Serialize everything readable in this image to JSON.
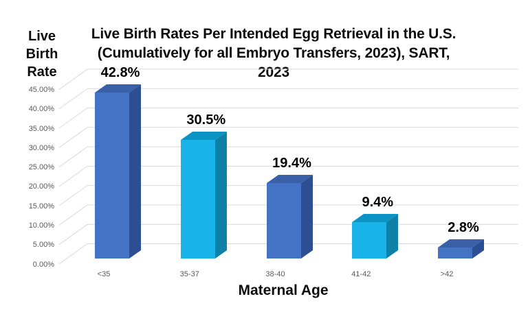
{
  "header": {
    "title_line1": "Live Birth Rates Per Intended Egg Retrieval in the U.S.",
    "title_line2": "(Cumulatively for all Embryo Transfers, 2023), SART, 2023"
  },
  "axes": {
    "y_title": "Live\nBirth\nRate",
    "x_title": "Maternal Age"
  },
  "chart_data": {
    "type": "bar",
    "title": "Live Birth Rates Per Intended Egg Retrieval in the U.S. (Cumulatively for all Embryo Transfers, 2023), SART, 2023",
    "xlabel": "Maternal Age",
    "ylabel": "Live Birth Rate",
    "categories": [
      "<35",
      "35-37",
      "38-40",
      "41-42",
      ">42"
    ],
    "values": [
      42.8,
      30.5,
      19.4,
      9.4,
      2.8
    ],
    "data_labels": [
      "42.8%",
      "30.5%",
      "19.4%",
      "9.4%",
      "2.8%"
    ],
    "bar_color_scheme": [
      "blue",
      "cyan",
      "blue",
      "cyan",
      "blue"
    ],
    "ylim": [
      0,
      45
    ],
    "y_tick_values": [
      45,
      40,
      35,
      30,
      25,
      20,
      15,
      10,
      5,
      0
    ],
    "y_tick_labels": [
      "45.00%",
      "40.00%",
      "35.00%",
      "30.00%",
      "25.00%",
      "20.00%",
      "15.00%",
      "10.00%",
      "5.00%",
      "0.00%"
    ],
    "grid": "on",
    "legend": "none",
    "style": "3d-column"
  },
  "colors": {
    "blue_front": "#4472C4",
    "blue_side": "#2C4E93",
    "blue_top": "#3A61A7",
    "cyan_front": "#17B3E9",
    "cyan_side": "#0F80A8",
    "cyan_top": "#0B93C4",
    "gridline": "#D9D9D9",
    "axis_text": "#595959",
    "background": "#FFFFFF"
  }
}
